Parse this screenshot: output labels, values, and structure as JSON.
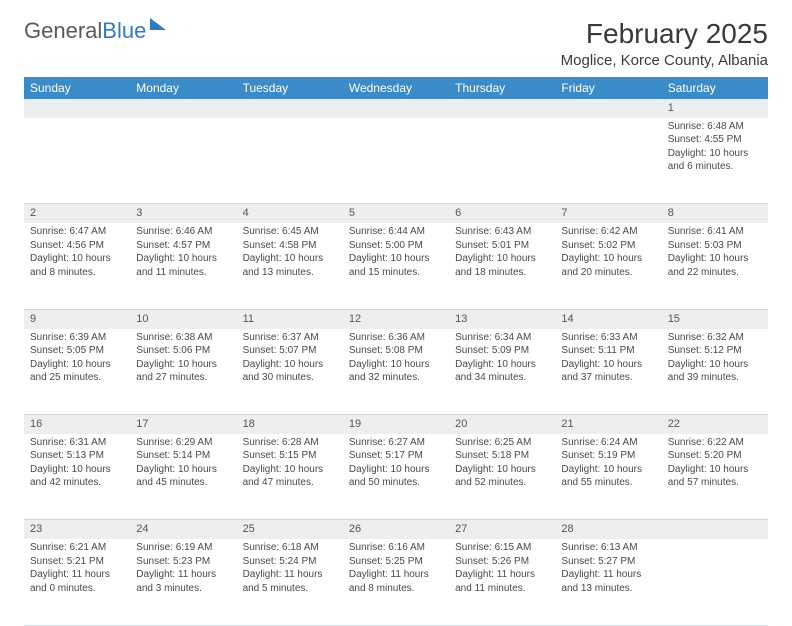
{
  "logo": {
    "part1": "General",
    "part2": "Blue"
  },
  "title": "February 2025",
  "location": "Moglice, Korce County, Albania",
  "header_bg": "#3b8bc9",
  "days": [
    "Sunday",
    "Monday",
    "Tuesday",
    "Wednesday",
    "Thursday",
    "Friday",
    "Saturday"
  ],
  "weeks": [
    {
      "nums": [
        "",
        "",
        "",
        "",
        "",
        "",
        "1"
      ],
      "cells": [
        null,
        null,
        null,
        null,
        null,
        null,
        {
          "sr": "Sunrise: 6:48 AM",
          "ss": "Sunset: 4:55 PM",
          "dl": "Daylight: 10 hours and 6 minutes."
        }
      ]
    },
    {
      "nums": [
        "2",
        "3",
        "4",
        "5",
        "6",
        "7",
        "8"
      ],
      "cells": [
        {
          "sr": "Sunrise: 6:47 AM",
          "ss": "Sunset: 4:56 PM",
          "dl": "Daylight: 10 hours and 8 minutes."
        },
        {
          "sr": "Sunrise: 6:46 AM",
          "ss": "Sunset: 4:57 PM",
          "dl": "Daylight: 10 hours and 11 minutes."
        },
        {
          "sr": "Sunrise: 6:45 AM",
          "ss": "Sunset: 4:58 PM",
          "dl": "Daylight: 10 hours and 13 minutes."
        },
        {
          "sr": "Sunrise: 6:44 AM",
          "ss": "Sunset: 5:00 PM",
          "dl": "Daylight: 10 hours and 15 minutes."
        },
        {
          "sr": "Sunrise: 6:43 AM",
          "ss": "Sunset: 5:01 PM",
          "dl": "Daylight: 10 hours and 18 minutes."
        },
        {
          "sr": "Sunrise: 6:42 AM",
          "ss": "Sunset: 5:02 PM",
          "dl": "Daylight: 10 hours and 20 minutes."
        },
        {
          "sr": "Sunrise: 6:41 AM",
          "ss": "Sunset: 5:03 PM",
          "dl": "Daylight: 10 hours and 22 minutes."
        }
      ]
    },
    {
      "nums": [
        "9",
        "10",
        "11",
        "12",
        "13",
        "14",
        "15"
      ],
      "cells": [
        {
          "sr": "Sunrise: 6:39 AM",
          "ss": "Sunset: 5:05 PM",
          "dl": "Daylight: 10 hours and 25 minutes."
        },
        {
          "sr": "Sunrise: 6:38 AM",
          "ss": "Sunset: 5:06 PM",
          "dl": "Daylight: 10 hours and 27 minutes."
        },
        {
          "sr": "Sunrise: 6:37 AM",
          "ss": "Sunset: 5:07 PM",
          "dl": "Daylight: 10 hours and 30 minutes."
        },
        {
          "sr": "Sunrise: 6:36 AM",
          "ss": "Sunset: 5:08 PM",
          "dl": "Daylight: 10 hours and 32 minutes."
        },
        {
          "sr": "Sunrise: 6:34 AM",
          "ss": "Sunset: 5:09 PM",
          "dl": "Daylight: 10 hours and 34 minutes."
        },
        {
          "sr": "Sunrise: 6:33 AM",
          "ss": "Sunset: 5:11 PM",
          "dl": "Daylight: 10 hours and 37 minutes."
        },
        {
          "sr": "Sunrise: 6:32 AM",
          "ss": "Sunset: 5:12 PM",
          "dl": "Daylight: 10 hours and 39 minutes."
        }
      ]
    },
    {
      "nums": [
        "16",
        "17",
        "18",
        "19",
        "20",
        "21",
        "22"
      ],
      "cells": [
        {
          "sr": "Sunrise: 6:31 AM",
          "ss": "Sunset: 5:13 PM",
          "dl": "Daylight: 10 hours and 42 minutes."
        },
        {
          "sr": "Sunrise: 6:29 AM",
          "ss": "Sunset: 5:14 PM",
          "dl": "Daylight: 10 hours and 45 minutes."
        },
        {
          "sr": "Sunrise: 6:28 AM",
          "ss": "Sunset: 5:15 PM",
          "dl": "Daylight: 10 hours and 47 minutes."
        },
        {
          "sr": "Sunrise: 6:27 AM",
          "ss": "Sunset: 5:17 PM",
          "dl": "Daylight: 10 hours and 50 minutes."
        },
        {
          "sr": "Sunrise: 6:25 AM",
          "ss": "Sunset: 5:18 PM",
          "dl": "Daylight: 10 hours and 52 minutes."
        },
        {
          "sr": "Sunrise: 6:24 AM",
          "ss": "Sunset: 5:19 PM",
          "dl": "Daylight: 10 hours and 55 minutes."
        },
        {
          "sr": "Sunrise: 6:22 AM",
          "ss": "Sunset: 5:20 PM",
          "dl": "Daylight: 10 hours and 57 minutes."
        }
      ]
    },
    {
      "nums": [
        "23",
        "24",
        "25",
        "26",
        "27",
        "28",
        ""
      ],
      "cells": [
        {
          "sr": "Sunrise: 6:21 AM",
          "ss": "Sunset: 5:21 PM",
          "dl": "Daylight: 11 hours and 0 minutes."
        },
        {
          "sr": "Sunrise: 6:19 AM",
          "ss": "Sunset: 5:23 PM",
          "dl": "Daylight: 11 hours and 3 minutes."
        },
        {
          "sr": "Sunrise: 6:18 AM",
          "ss": "Sunset: 5:24 PM",
          "dl": "Daylight: 11 hours and 5 minutes."
        },
        {
          "sr": "Sunrise: 6:16 AM",
          "ss": "Sunset: 5:25 PM",
          "dl": "Daylight: 11 hours and 8 minutes."
        },
        {
          "sr": "Sunrise: 6:15 AM",
          "ss": "Sunset: 5:26 PM",
          "dl": "Daylight: 11 hours and 11 minutes."
        },
        {
          "sr": "Sunrise: 6:13 AM",
          "ss": "Sunset: 5:27 PM",
          "dl": "Daylight: 11 hours and 13 minutes."
        },
        null
      ]
    }
  ]
}
